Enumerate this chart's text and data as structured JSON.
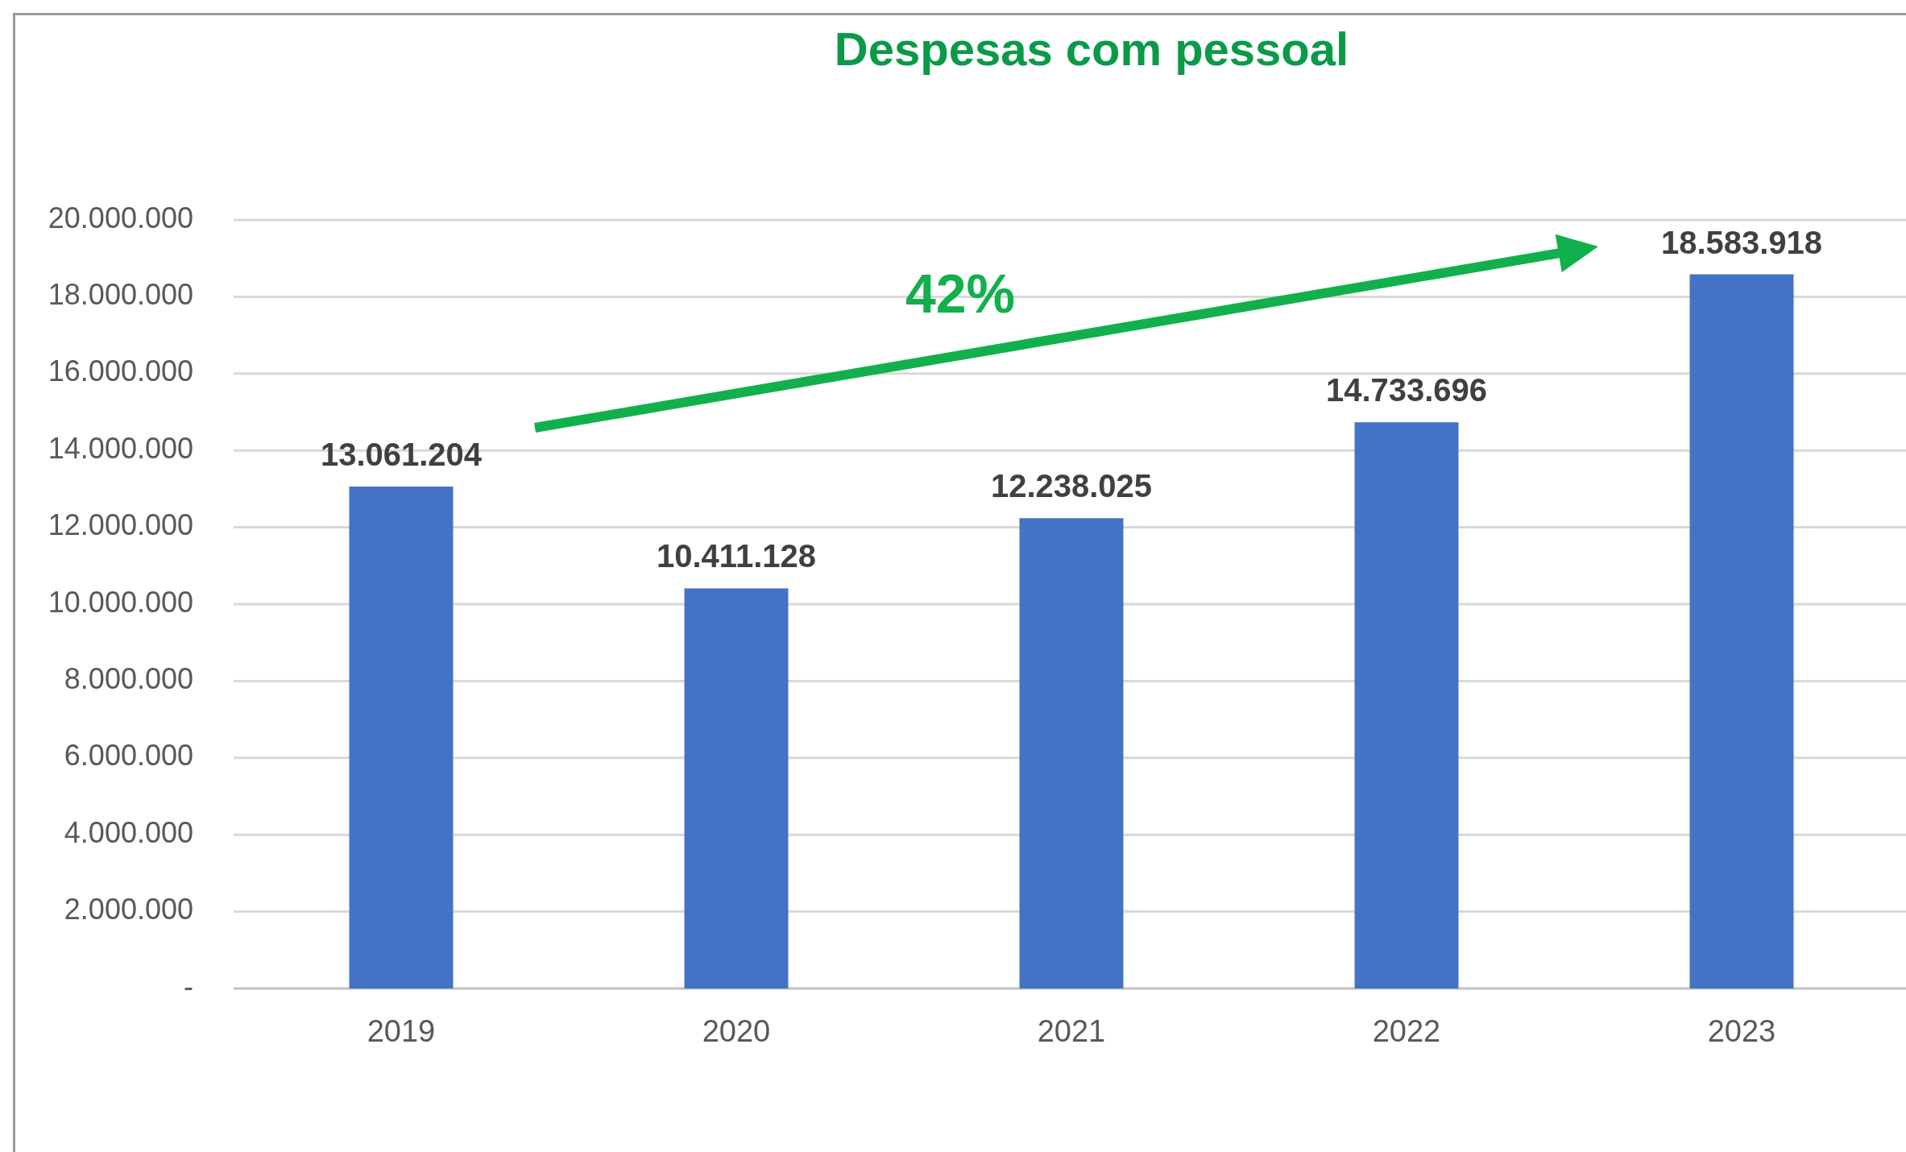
{
  "chart_data": {
    "type": "bar",
    "title": "Despesas com pessoal",
    "categories": [
      "2019",
      "2020",
      "2021",
      "2022",
      "2023"
    ],
    "values": [
      13061204,
      10411128,
      12238025,
      14733696,
      18583918
    ],
    "color": "#4472c4",
    "ylim": [
      0,
      20000000
    ],
    "yticks": [
      {
        "value": 0,
        "label": "-"
      },
      {
        "value": 2000000,
        "label": "2.000.000"
      },
      {
        "value": 4000000,
        "label": "4.000.000"
      },
      {
        "value": 6000000,
        "label": "6.000.000"
      },
      {
        "value": 8000000,
        "label": "8.000.000"
      },
      {
        "value": 10000000,
        "label": "10.000.000"
      },
      {
        "value": 12000000,
        "label": "12.000.000"
      },
      {
        "value": 14000000,
        "label": "14.000.000"
      },
      {
        "value": 16000000,
        "label": "16.000.000"
      },
      {
        "value": 18000000,
        "label": "18.000.000"
      },
      {
        "value": 20000000,
        "label": "20.000.000"
      }
    ],
    "grid": true,
    "value_labels": [
      "13.061.204",
      "10.411.128",
      "12.238.025",
      "14.733.696",
      "18.583.918"
    ],
    "annotations": [
      "42%"
    ]
  }
}
